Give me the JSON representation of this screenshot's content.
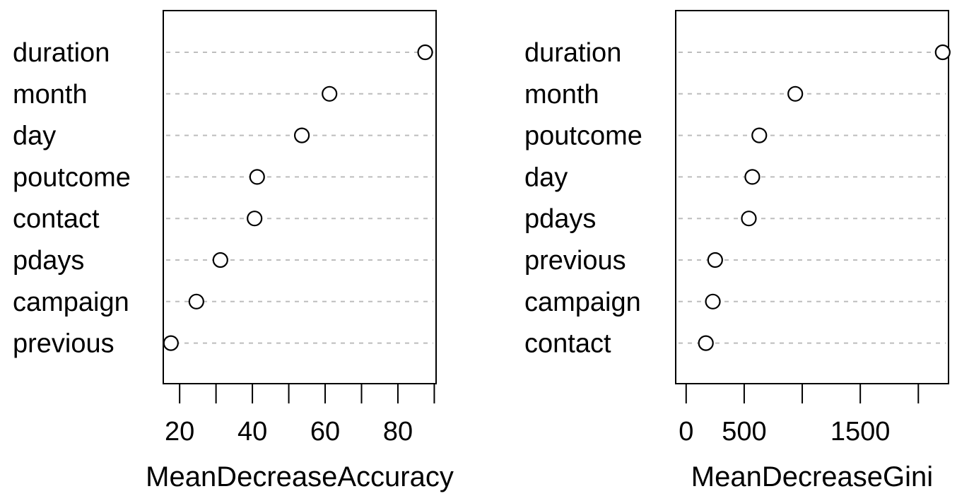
{
  "chart_data": [
    {
      "type": "scatter",
      "xlabel": "MeanDecreaseAccuracy",
      "categories": [
        "duration",
        "month",
        "day",
        "poutcome",
        "contact",
        "pdays",
        "campaign",
        "previous"
      ],
      "values": [
        87.5,
        61.2,
        53.6,
        41.3,
        40.6,
        31.2,
        24.6,
        17.6
      ],
      "xlim": [
        15.5,
        90.5
      ],
      "xticks": [
        20,
        30,
        40,
        50,
        60,
        70,
        80,
        90
      ],
      "xtick_labels": [
        "20",
        "",
        "40",
        "",
        "60",
        "",
        "80",
        ""
      ],
      "grid": "dotted horizontal guides"
    },
    {
      "type": "scatter",
      "xlabel": "MeanDecreaseGini",
      "categories": [
        "duration",
        "month",
        "poutcome",
        "day",
        "pdays",
        "previous",
        "campaign",
        "contact"
      ],
      "values": [
        2210,
        940,
        630,
        570,
        540,
        250,
        230,
        170
      ],
      "xlim": [
        -90,
        2260
      ],
      "xticks": [
        0,
        500,
        1000,
        1500,
        2000
      ],
      "xtick_labels": [
        "0",
        "500",
        "",
        "1500",
        ""
      ],
      "grid": "dotted horizontal guides"
    }
  ]
}
